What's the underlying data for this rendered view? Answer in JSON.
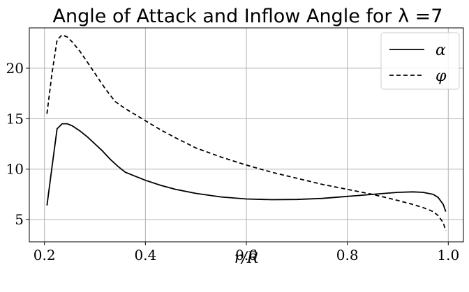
{
  "chart_data": {
    "type": "line",
    "title": "Angle of Attack and Inflow Angle for λ =7",
    "xlabel": "r/R",
    "ylabel": "",
    "xlim": [
      0.17,
      1.03
    ],
    "ylim": [
      2.8,
      24.0
    ],
    "xticks": [
      0.2,
      0.4,
      0.6,
      0.8,
      1.0
    ],
    "xtick_labels": [
      "0.2",
      "0.4",
      "0.6",
      "0.8",
      "1.0"
    ],
    "yticks": [
      5,
      10,
      15,
      20
    ],
    "ytick_labels": [
      "5",
      "10",
      "15",
      "20"
    ],
    "grid": true,
    "legend_position": "top-right",
    "series": [
      {
        "name": "α",
        "style": "solid",
        "color": "#000000",
        "x": [
          0.205,
          0.215,
          0.225,
          0.235,
          0.245,
          0.255,
          0.27,
          0.285,
          0.3,
          0.315,
          0.33,
          0.345,
          0.36,
          0.38,
          0.4,
          0.43,
          0.46,
          0.5,
          0.55,
          0.6,
          0.65,
          0.7,
          0.75,
          0.8,
          0.85,
          0.9,
          0.93,
          0.95,
          0.97,
          0.98,
          0.99,
          0.995
        ],
        "y": [
          6.4,
          10.2,
          14.0,
          14.5,
          14.5,
          14.3,
          13.8,
          13.2,
          12.5,
          11.8,
          11.0,
          10.3,
          9.7,
          9.3,
          8.9,
          8.4,
          8.0,
          7.6,
          7.25,
          7.05,
          6.98,
          7.0,
          7.1,
          7.3,
          7.5,
          7.7,
          7.75,
          7.7,
          7.5,
          7.2,
          6.5,
          5.8
        ]
      },
      {
        "name": "φ",
        "style": "dashed",
        "color": "#000000",
        "x": [
          0.205,
          0.215,
          0.225,
          0.235,
          0.245,
          0.255,
          0.27,
          0.285,
          0.3,
          0.32,
          0.34,
          0.36,
          0.38,
          0.4,
          0.43,
          0.46,
          0.5,
          0.55,
          0.6,
          0.65,
          0.7,
          0.75,
          0.8,
          0.85,
          0.9,
          0.93,
          0.95,
          0.97,
          0.98,
          0.99,
          0.995
        ],
        "y": [
          15.5,
          19.5,
          22.8,
          23.3,
          23.1,
          22.6,
          21.7,
          20.6,
          19.5,
          18.0,
          16.7,
          16.0,
          15.4,
          14.8,
          13.9,
          13.1,
          12.1,
          11.2,
          10.4,
          9.7,
          9.1,
          8.5,
          8.0,
          7.5,
          6.9,
          6.5,
          6.2,
          5.8,
          5.4,
          4.7,
          3.9
        ]
      }
    ]
  }
}
